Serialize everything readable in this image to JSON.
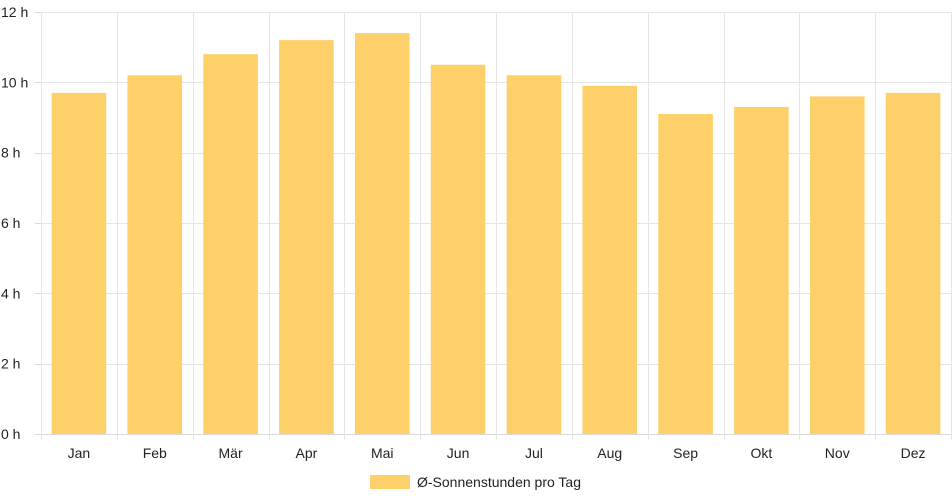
{
  "chart_data": {
    "type": "bar",
    "categories": [
      "Jan",
      "Feb",
      "Mär",
      "Apr",
      "Mai",
      "Jun",
      "Jul",
      "Aug",
      "Sep",
      "Okt",
      "Nov",
      "Dez"
    ],
    "series": [
      {
        "name": "Ø-Sonnenstunden pro Tag",
        "values": [
          9.7,
          10.2,
          10.8,
          11.2,
          11.4,
          10.5,
          10.2,
          9.9,
          9.1,
          9.3,
          9.6,
          9.7
        ],
        "color": "#fdd069"
      }
    ],
    "title": "",
    "xlabel": "",
    "ylabel": "",
    "ylim": [
      0,
      12
    ],
    "yticks": [
      0,
      2,
      4,
      6,
      8,
      10,
      12
    ],
    "ytick_suffix": " h",
    "grid": true,
    "legend_position": "bottom"
  }
}
